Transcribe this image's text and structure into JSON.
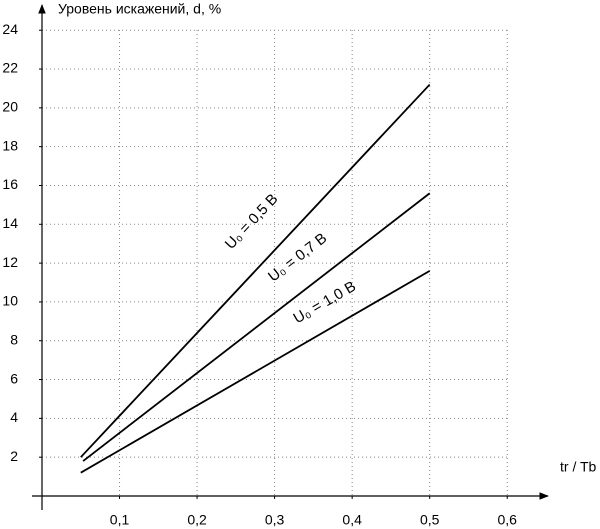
{
  "chart_data": {
    "type": "line",
    "y_label": "Уровень искажений,    d,  %",
    "x_label": "tr / Tb",
    "series": [
      {
        "name": "U₀ = 0,5 В",
        "color": "#000000",
        "x": [
          0.05,
          0.5
        ],
        "values": [
          2.0,
          21.2
        ]
      },
      {
        "name": "U₀ = 0,7 В",
        "color": "#000000",
        "x": [
          0.053,
          0.5
        ],
        "values": [
          1.8,
          15.6
        ]
      },
      {
        "name": "U₀ = 1,0 В",
        "color": "#000000",
        "x": [
          0.05,
          0.5
        ],
        "values": [
          1.2,
          11.6
        ]
      }
    ],
    "xlim": [
      0,
      0.65
    ],
    "ylim": [
      0,
      25.3
    ],
    "xticks": [
      {
        "value": 0.1,
        "label": "0,1"
      },
      {
        "value": 0.2,
        "label": "0,2"
      },
      {
        "value": 0.3,
        "label": "0,3"
      },
      {
        "value": 0.4,
        "label": "0,4"
      },
      {
        "value": 0.5,
        "label": "0,5"
      },
      {
        "value": 0.6,
        "label": "0,6"
      }
    ],
    "yticks": [
      2,
      4,
      6,
      8,
      10,
      12,
      14,
      16,
      18,
      20,
      22,
      24
    ],
    "grid": true
  }
}
